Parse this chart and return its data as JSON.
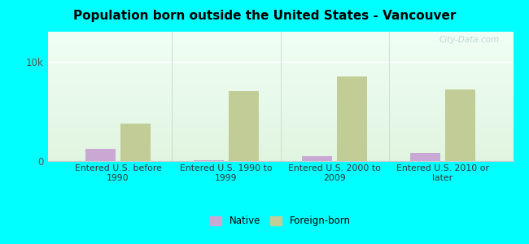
{
  "title": "Population born outside the United States - Vancouver",
  "categories": [
    "Entered U.S. before\n1990",
    "Entered U.S. 1990 to\n1999",
    "Entered U.S. 2000 to\n2009",
    "Entered U.S. 2010 or\nlater"
  ],
  "native_values": [
    1200,
    80,
    500,
    800
  ],
  "foreign_values": [
    3800,
    7000,
    8500,
    7200
  ],
  "native_color": "#c9a8d4",
  "foreign_color": "#c2cc96",
  "background_color": "#00ffff",
  "ylabel": "",
  "ylim": [
    0,
    13000
  ],
  "ytick_positions": [
    0,
    10000
  ],
  "ytick_labels": [
    "0",
    "10k"
  ],
  "legend_native": "Native",
  "legend_foreign": "Foreign-born",
  "title_fontsize": 11,
  "bar_width": 0.28,
  "watermark": "City-Data.com"
}
